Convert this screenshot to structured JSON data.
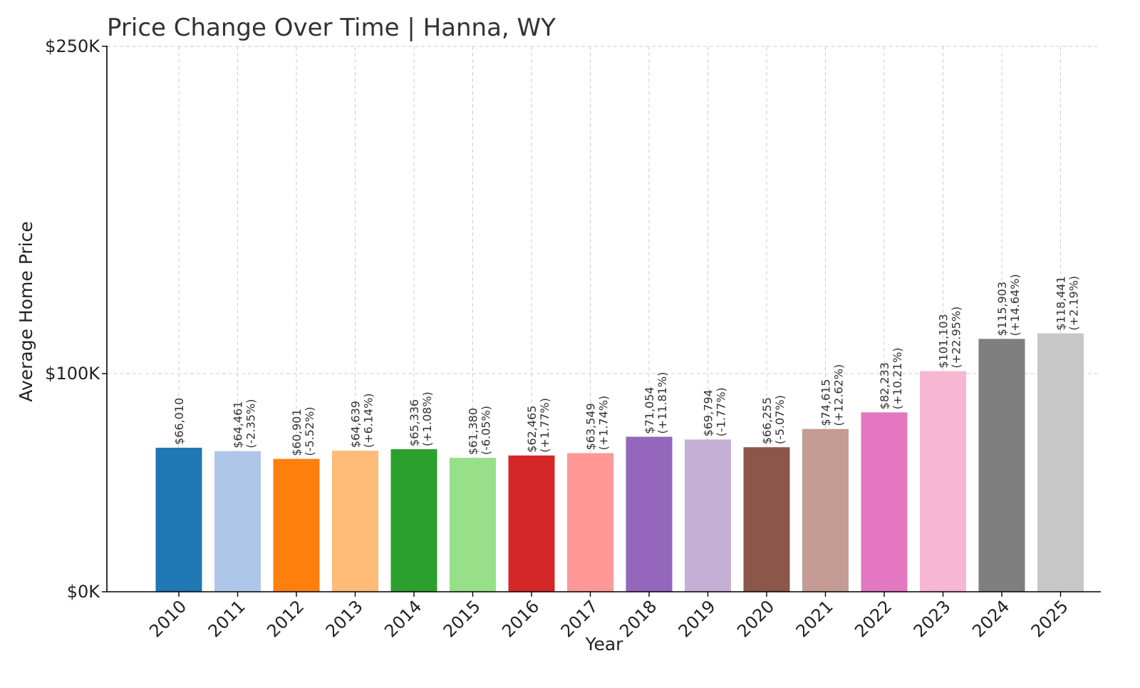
{
  "chart_data": {
    "type": "bar",
    "title": "Price Change Over Time | Hanna, WY",
    "xlabel": "Year",
    "ylabel": "Average Home Price",
    "ylim": [
      0,
      250000
    ],
    "yticks": [
      {
        "value": 0,
        "label": "$0K"
      },
      {
        "value": 100000,
        "label": "$100K"
      },
      {
        "value": 250000,
        "label": "$250K"
      }
    ],
    "grid": true,
    "categories": [
      "2010",
      "2011",
      "2012",
      "2013",
      "2014",
      "2015",
      "2016",
      "2017",
      "2018",
      "2019",
      "2020",
      "2021",
      "2022",
      "2023",
      "2024",
      "2025"
    ],
    "values": [
      66010,
      64461,
      60901,
      64639,
      65336,
      61380,
      62465,
      63549,
      71054,
      69794,
      66255,
      74615,
      82233,
      101103,
      115903,
      118441
    ],
    "value_labels": [
      "$66,010",
      "$64,461",
      "$60,901",
      "$64,639",
      "$65,336",
      "$61,380",
      "$62,465",
      "$63,549",
      "$71,054",
      "$69,794",
      "$66,255",
      "$74,615",
      "$82,233",
      "$101,103",
      "$115,903",
      "$118,441"
    ],
    "change_labels": [
      "",
      "(-2.35%)",
      "(-5.52%)",
      "(+6.14%)",
      "(+1.08%)",
      "(-6.05%)",
      "(+1.77%)",
      "(+1.74%)",
      "(+11.81%)",
      "(-1.77%)",
      "(-5.07%)",
      "(+12.62%)",
      "(+10.21%)",
      "(+22.95%)",
      "(+14.64%)",
      "(+2.19%)"
    ],
    "colors": [
      "#1f77b4",
      "#aec7e8",
      "#ff7f0e",
      "#ffbb78",
      "#2ca02c",
      "#98df8a",
      "#d62728",
      "#ff9896",
      "#9467bd",
      "#c5b0d5",
      "#8c564b",
      "#c49c94",
      "#e377c2",
      "#f7b6d2",
      "#7f7f7f",
      "#c7c7c7"
    ]
  }
}
